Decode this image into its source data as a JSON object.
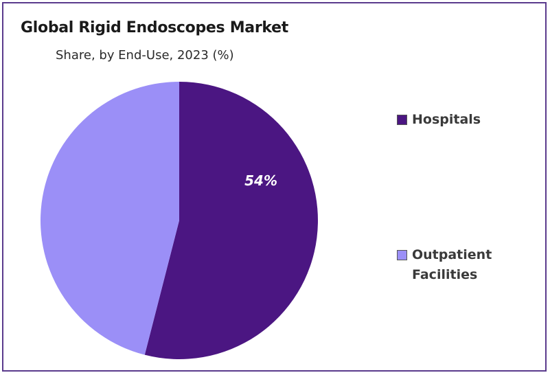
{
  "chart_data": {
    "type": "pie",
    "title": "Global Rigid Endoscopes Market",
    "subtitle": "Share, by End-Use, 2023 (%)",
    "categories": [
      "Hospitals",
      "Outpatient Facilities"
    ],
    "values": [
      54,
      46
    ],
    "data_labels": [
      "54%",
      ""
    ],
    "colors": [
      "#4b1682",
      "#9b8ff7"
    ],
    "legend_position": "right",
    "legend": {
      "hospitals": "Hospitals",
      "outpatient_line1": "Outpatient",
      "outpatient_line2": "Facilities"
    }
  }
}
